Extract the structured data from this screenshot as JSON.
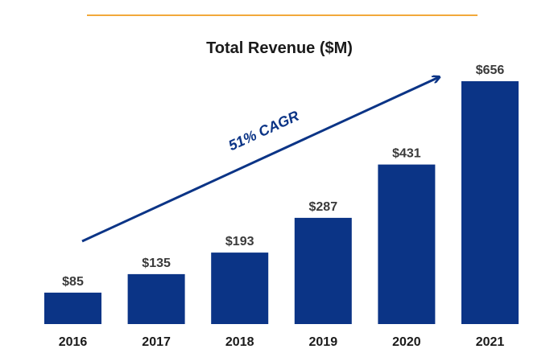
{
  "colors": {
    "bar": "#0b3486",
    "arrow": "#0b3486",
    "accent_line": "#f2a93b"
  },
  "chart_data": {
    "type": "bar",
    "title": "Total Revenue ($M)",
    "xlabel": "",
    "ylabel": "",
    "categories": [
      "2016",
      "2017",
      "2018",
      "2019",
      "2020",
      "2021"
    ],
    "values": [
      85,
      135,
      193,
      287,
      431,
      656
    ],
    "value_labels": [
      "$85",
      "$135",
      "$193",
      "$287",
      "$431",
      "$656"
    ],
    "ylim": [
      0,
      656
    ],
    "grid": false,
    "legend": "none",
    "annotation": {
      "text": "51% CAGR"
    }
  }
}
